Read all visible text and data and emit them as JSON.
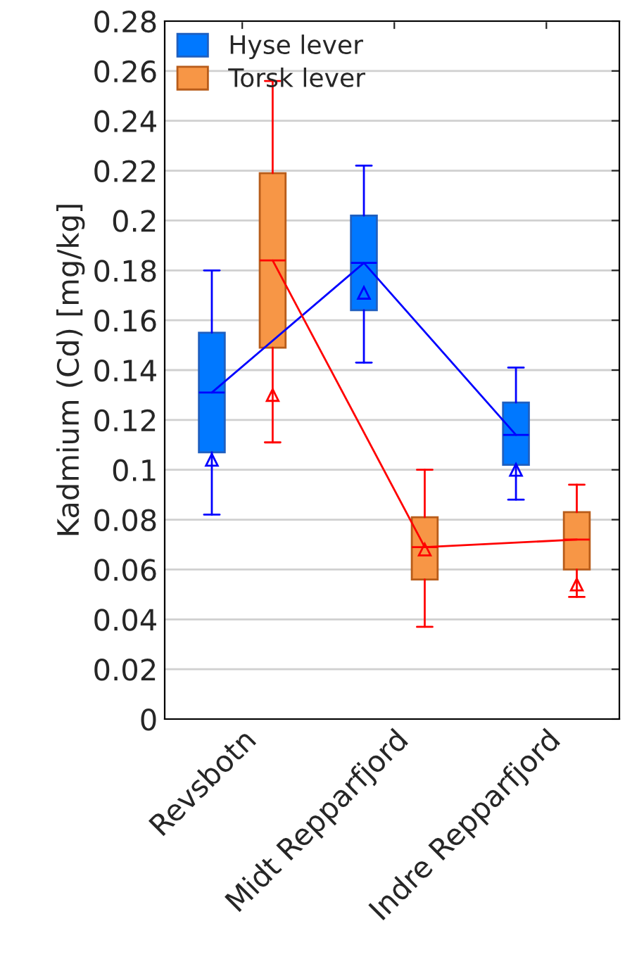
{
  "chart_data": {
    "type": "box",
    "ylabel": "Kadmium (Cd) [mg/kg]",
    "categories": [
      "Revsbotn",
      "Midt Repparfjord",
      "Indre Repparfjord"
    ],
    "series": [
      {
        "name": "Hyse lever",
        "color": "#0078ff",
        "boxes": [
          {
            "low": 0.082,
            "q1": 0.107,
            "median": 0.131,
            "q3": 0.155,
            "high": 0.18,
            "mean": 0.104
          },
          {
            "low": 0.143,
            "q1": 0.164,
            "median": 0.183,
            "q3": 0.202,
            "high": 0.222,
            "mean": 0.171
          },
          {
            "low": 0.088,
            "q1": 0.102,
            "median": 0.114,
            "q3": 0.127,
            "high": 0.141,
            "mean": 0.1
          }
        ]
      },
      {
        "name": "Torsk lever",
        "color": "#f79646",
        "boxes": [
          {
            "low": 0.111,
            "q1": 0.149,
            "median": 0.184,
            "q3": 0.219,
            "high": 0.256,
            "mean": 0.13
          },
          {
            "low": 0.037,
            "q1": 0.056,
            "median": 0.069,
            "q3": 0.081,
            "high": 0.1,
            "mean": 0.068
          },
          {
            "low": 0.049,
            "q1": 0.06,
            "median": 0.072,
            "q3": 0.083,
            "high": 0.094,
            "mean": 0.054
          }
        ]
      },
      {
        "type": "line",
        "color": "#0000ff",
        "values": [
          0.131,
          0.183,
          0.114
        ]
      },
      {
        "type": "line",
        "color": "#ff0000",
        "values": [
          0.184,
          0.069,
          0.072
        ]
      }
    ],
    "ylim": [
      0,
      0.28
    ],
    "yticks": [
      0,
      0.02,
      0.04,
      0.06,
      0.08,
      0.1,
      0.12,
      0.14,
      0.16,
      0.18,
      0.2,
      0.22,
      0.24,
      0.26,
      0.28
    ],
    "grid": "y",
    "legend": "top left"
  }
}
